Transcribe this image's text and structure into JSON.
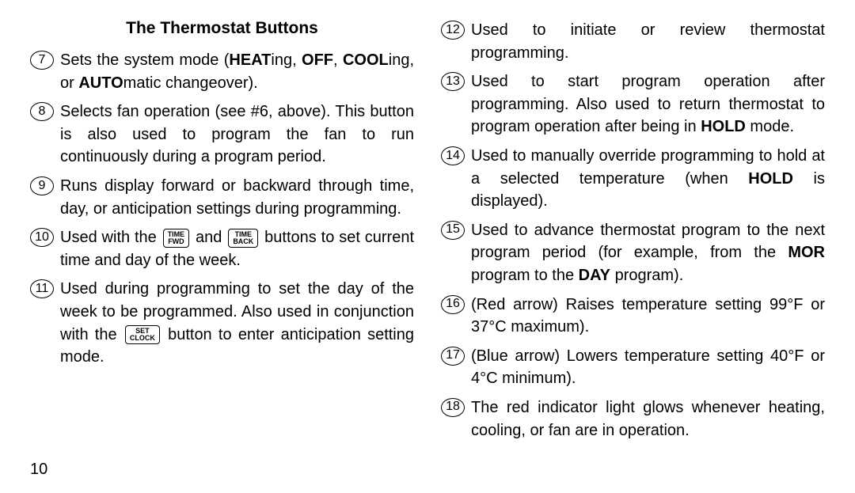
{
  "page_number": "10",
  "title": "The Thermostat Buttons",
  "left": [
    {
      "n": "7",
      "html": "Sets the system mode (<span class='b'>HEAT</span>ing, <span class='b'>OFF</span>, <span class='b'>COOL</span>ing, or <span class='b'>AUTO</span>matic changeover)."
    },
    {
      "n": "8",
      "html": "Selects fan operation (see #6, above). This button is also used to program the fan to run continuously during a program period."
    },
    {
      "n": "9",
      "html": "Runs display forward or backward through time, day, or anticipation settings during programming."
    },
    {
      "n": "10",
      "html": "Used with the <span class='keycap'><span>TIME</span><span>FWD</span></span> and <span class='keycap'><span>TIME</span><span>BACK</span></span> buttons to set current time and day of the week."
    },
    {
      "n": "11",
      "html": "Used during programming to set the day of the week to be programmed. Also used in conjunction with the <span class='keycap'><span>SET</span><span>CLOCK</span></span> button to enter anticipation setting mode."
    }
  ],
  "right": [
    {
      "n": "12",
      "html": "Used to initiate or review thermostat programming."
    },
    {
      "n": "13",
      "html": "Used to start program operation after programming. Also used to return thermostat to program operation after being in <span class='b'>HOLD</span> mode."
    },
    {
      "n": "14",
      "html": "Used to manually override programming to hold at a selected temperature (when <span class='b'>HOLD</span> is displayed)."
    },
    {
      "n": "15",
      "html": "Used to advance thermostat program to the next program period (for example, from the <span class='b'>MOR</span> program to the <span class='b'>DAY</span> program)."
    },
    {
      "n": "16",
      "html": "(Red arrow) Raises temperature setting 99°F or 37°C maximum)."
    },
    {
      "n": "17",
      "html": "(Blue arrow) Lowers temperature setting 40°F or 4°C minimum)."
    },
    {
      "n": "18",
      "html": "The red indicator light glows whenever heating, cooling, or fan are in operation."
    }
  ]
}
